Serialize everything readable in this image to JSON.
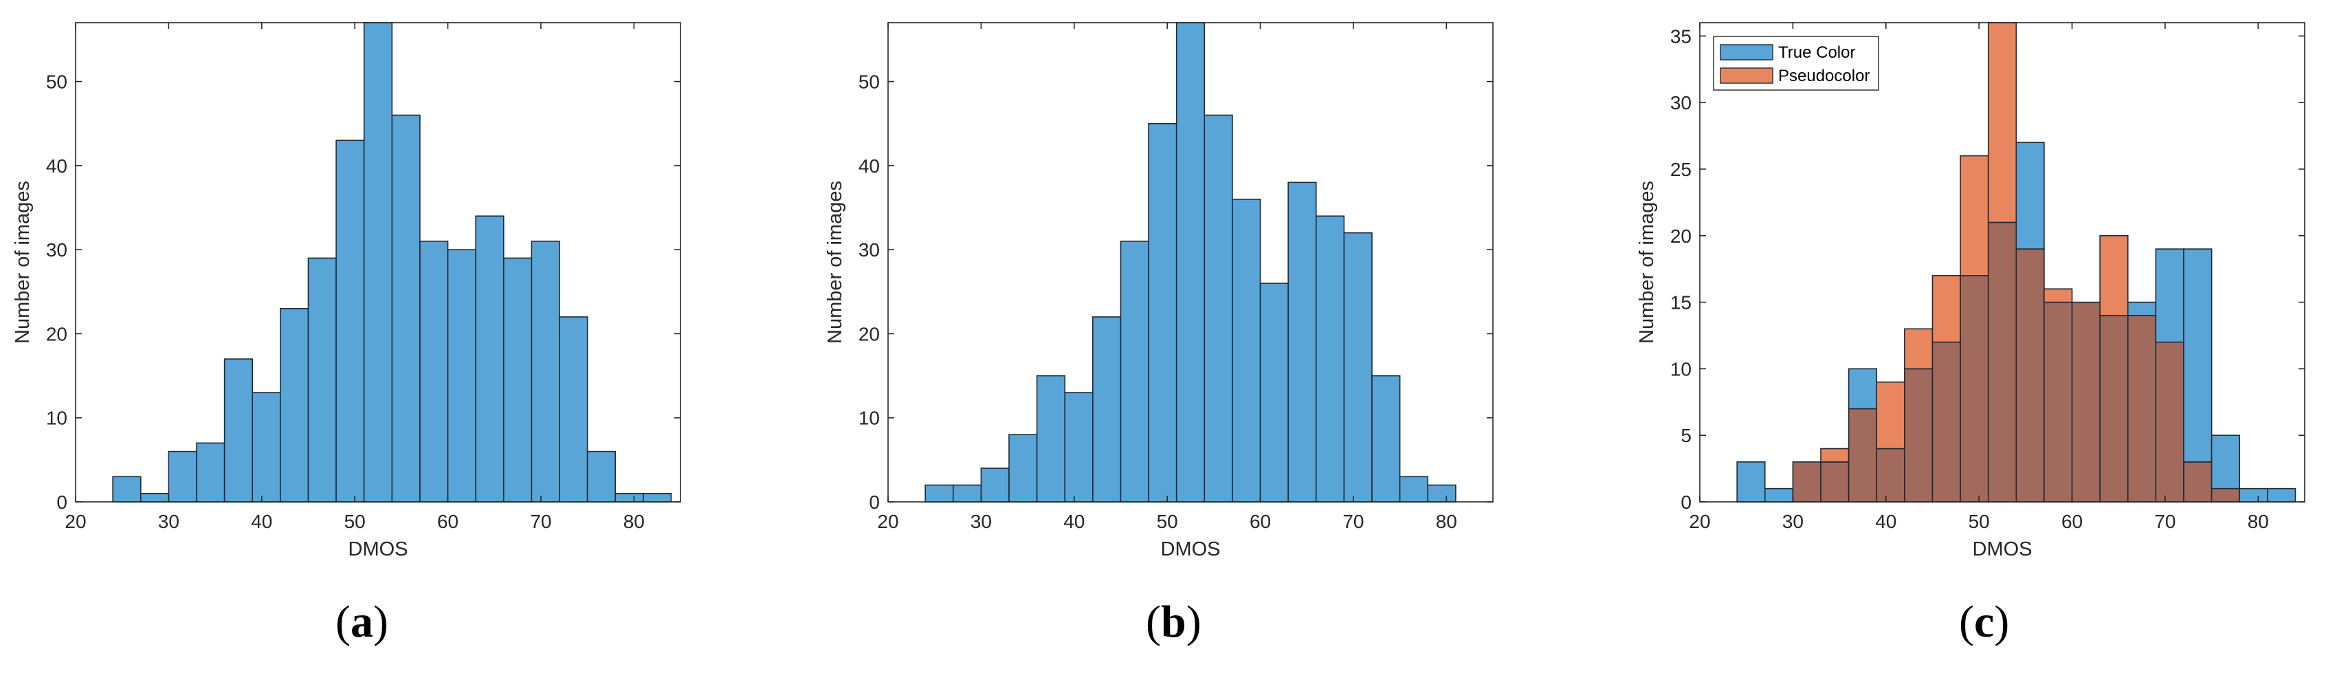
{
  "colors": {
    "blue": "#5aa5d8",
    "orange": "#e8875f",
    "overlap": "#a16a5c",
    "edge": "#1f2933",
    "axis": "#262626"
  },
  "captions": [
    "a",
    "b",
    "c"
  ],
  "chart_data": [
    {
      "type": "bar",
      "panel": "a",
      "xlabel": "DMOS",
      "ylabel": "Number of images",
      "xlim": [
        20,
        85
      ],
      "ylim": [
        0,
        57
      ],
      "xticks": [
        20,
        30,
        40,
        50,
        60,
        70,
        80
      ],
      "yticks": [
        0,
        10,
        20,
        30,
        40,
        50
      ],
      "bin_edges": [
        24,
        27,
        30,
        33,
        36,
        39,
        42,
        45,
        48,
        51,
        54,
        57,
        60,
        63,
        66,
        69,
        72,
        75,
        78,
        81,
        84
      ],
      "series": [
        {
          "values": [
            3,
            1,
            6,
            7,
            17,
            13,
            23,
            29,
            43,
            57,
            46,
            31,
            30,
            34,
            29,
            31,
            22,
            6,
            1,
            1
          ]
        }
      ]
    },
    {
      "type": "bar",
      "panel": "b",
      "xlabel": "DMOS",
      "ylabel": "Number of images",
      "xlim": [
        20,
        85
      ],
      "ylim": [
        0,
        57
      ],
      "xticks": [
        20,
        30,
        40,
        50,
        60,
        70,
        80
      ],
      "yticks": [
        0,
        10,
        20,
        30,
        40,
        50
      ],
      "bin_edges": [
        24,
        27,
        30,
        33,
        36,
        39,
        42,
        45,
        48,
        51,
        54,
        57,
        60,
        63,
        66,
        69,
        72,
        75,
        78,
        81
      ],
      "series": [
        {
          "values": [
            2,
            2,
            4,
            8,
            15,
            13,
            22,
            31,
            45,
            57,
            46,
            36,
            26,
            38,
            34,
            32,
            15,
            3,
            2
          ]
        }
      ]
    },
    {
      "type": "bar",
      "panel": "c",
      "xlabel": "DMOS",
      "ylabel": "Number of images",
      "xlim": [
        20,
        85
      ],
      "ylim": [
        0,
        36
      ],
      "xticks": [
        20,
        30,
        40,
        50,
        60,
        70,
        80
      ],
      "yticks": [
        0,
        5,
        10,
        15,
        20,
        25,
        30,
        35
      ],
      "legend": "top-left",
      "bin_edges": [
        24,
        27,
        30,
        33,
        36,
        39,
        42,
        45,
        48,
        51,
        54,
        57,
        60,
        63,
        66,
        69,
        72,
        75,
        78,
        81,
        84
      ],
      "series": [
        {
          "name": "True Color",
          "values": [
            3,
            1,
            3,
            3,
            10,
            4,
            10,
            12,
            17,
            21,
            27,
            15,
            15,
            14,
            15,
            19,
            19,
            5,
            1,
            1
          ]
        },
        {
          "name": "Pseudocolor",
          "values": [
            0,
            0,
            3,
            4,
            7,
            9,
            13,
            17,
            26,
            36,
            19,
            16,
            15,
            20,
            14,
            12,
            3,
            1,
            0,
            0
          ]
        }
      ]
    }
  ]
}
